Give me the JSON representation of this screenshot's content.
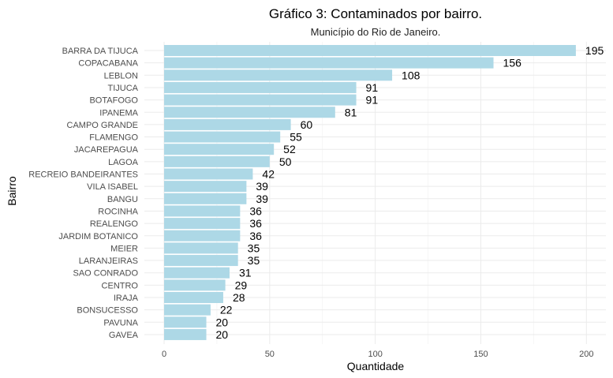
{
  "chart_data": {
    "type": "bar",
    "orientation": "horizontal",
    "title": "Gráfico 3: Contaminados por bairro.",
    "subtitle": "Município do Rio de Janeiro.",
    "xlabel": "Quantidade",
    "ylabel": "Bairro",
    "xlim": [
      0,
      205
    ],
    "x_ticks": [
      "0",
      "50",
      "100",
      "150",
      "200"
    ],
    "grid": true,
    "bar_color": "#add8e6",
    "categories": [
      "BARRA DA TIJUCA",
      "COPACABANA",
      "LEBLON",
      "TIJUCA",
      "BOTAFOGO",
      "IPANEMA",
      "CAMPO GRANDE",
      "FLAMENGO",
      "JACAREPAGUA",
      "LAGOA",
      "RECREIO BANDEIRANTES",
      "VILA ISABEL",
      "BANGU",
      "ROCINHA",
      "REALENGO",
      "JARDIM BOTANICO",
      "MEIER",
      "LARANJEIRAS",
      "SAO CONRADO",
      "CENTRO",
      "IRAJA",
      "BONSUCESSO",
      "PAVUNA",
      "GAVEA"
    ],
    "values": [
      195,
      156,
      108,
      91,
      91,
      81,
      60,
      55,
      52,
      50,
      42,
      39,
      39,
      36,
      36,
      36,
      35,
      35,
      31,
      29,
      28,
      22,
      20,
      20
    ],
    "value_labels": [
      "195",
      "156",
      "108",
      "91",
      "91",
      "81",
      "60",
      "55",
      "52",
      "50",
      "42",
      "39",
      "39",
      "36",
      "36",
      "36",
      "35",
      "35",
      "31",
      "29",
      "28",
      "22",
      "20",
      "20"
    ]
  }
}
